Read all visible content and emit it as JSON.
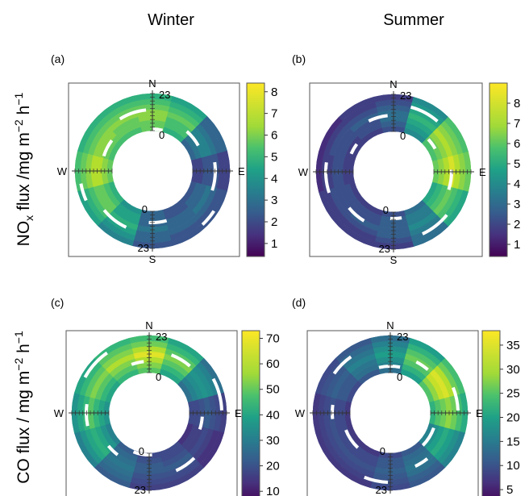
{
  "figure": {
    "column_titles": [
      "Winter",
      "Summer"
    ],
    "row_labels": [
      "NOx flux /mg m-2 h-1",
      "CO flux / mg m-2 h-1"
    ],
    "compass": [
      "N",
      "E",
      "S",
      "W"
    ],
    "hour_labels": [
      "0",
      "23"
    ]
  },
  "chart_data": [
    {
      "type": "polar-annulus",
      "panel": "(a)",
      "season": "Winter",
      "variable": "NOx flux",
      "colorbar": {
        "min": 0.4,
        "max": 8.4,
        "ticks": [
          1,
          2,
          3,
          4,
          5,
          6,
          7,
          8
        ]
      },
      "wind_direction_bins_deg": [
        0,
        30,
        60,
        90,
        120,
        150,
        180,
        210,
        240,
        270,
        300,
        330
      ],
      "hour_bins": [
        0,
        4,
        8,
        12,
        16,
        20,
        23
      ],
      "values": [
        [
          6.5,
          5.5,
          3.0,
          2.0,
          2.5,
          2.5,
          3.0,
          4.5,
          5.5,
          6.5,
          6.0,
          6.0
        ],
        [
          6.5,
          6.0,
          3.5,
          2.0,
          3.0,
          2.5,
          3.0,
          5.0,
          6.0,
          7.0,
          6.5,
          6.5
        ],
        [
          7.0,
          6.0,
          4.0,
          2.5,
          3.0,
          3.0,
          3.0,
          5.0,
          6.5,
          7.5,
          7.0,
          6.5
        ],
        [
          7.0,
          6.5,
          4.0,
          2.5,
          3.5,
          3.0,
          3.5,
          5.5,
          6.5,
          7.5,
          7.0,
          7.0
        ],
        [
          6.5,
          6.0,
          3.5,
          2.5,
          3.0,
          3.0,
          3.0,
          5.0,
          6.0,
          7.0,
          6.5,
          6.5
        ],
        [
          6.0,
          5.5,
          3.0,
          2.0,
          2.5,
          2.5,
          3.0,
          4.5,
          5.5,
          6.5,
          6.0,
          6.0
        ],
        [
          5.5,
          5.0,
          3.0,
          2.0,
          2.5,
          2.5,
          2.5,
          4.0,
          5.0,
          6.0,
          5.5,
          5.5
        ]
      ]
    },
    {
      "type": "polar-annulus",
      "panel": "(b)",
      "season": "Summer",
      "variable": "NOx flux",
      "colorbar": {
        "min": 0.4,
        "max": 9.0,
        "ticks": [
          1,
          2,
          3,
          4,
          5,
          6,
          7,
          8
        ]
      },
      "wind_direction_bins_deg": [
        0,
        30,
        60,
        90,
        120,
        150,
        180,
        210,
        240,
        270,
        300,
        330
      ],
      "hour_bins": [
        0,
        4,
        8,
        12,
        16,
        20,
        23
      ],
      "values": [
        [
          2.5,
          4.5,
          6.5,
          7.0,
          5.5,
          3.5,
          2.5,
          2.0,
          2.0,
          2.0,
          2.0,
          2.0
        ],
        [
          3.0,
          5.0,
          7.0,
          7.5,
          6.0,
          4.0,
          3.0,
          2.5,
          2.5,
          2.0,
          2.0,
          2.5
        ],
        [
          3.5,
          5.5,
          7.5,
          8.0,
          6.5,
          4.0,
          3.0,
          2.5,
          2.5,
          2.5,
          2.5,
          2.5
        ],
        [
          3.5,
          6.0,
          8.0,
          8.5,
          7.0,
          4.5,
          3.0,
          3.0,
          2.5,
          2.5,
          2.5,
          3.0
        ],
        [
          3.0,
          5.5,
          7.5,
          8.0,
          6.5,
          4.0,
          3.0,
          2.5,
          2.5,
          2.0,
          2.5,
          2.5
        ],
        [
          2.5,
          5.0,
          7.0,
          7.5,
          6.0,
          3.5,
          2.5,
          2.0,
          2.0,
          2.0,
          2.0,
          2.0
        ],
        [
          2.0,
          4.5,
          6.5,
          7.0,
          5.5,
          3.5,
          2.0,
          2.0,
          2.0,
          1.5,
          1.5,
          2.0
        ]
      ]
    },
    {
      "type": "polar-annulus",
      "panel": "(c)",
      "season": "Winter",
      "variable": "CO flux",
      "colorbar": {
        "min": 5,
        "max": 73,
        "ticks": [
          10,
          20,
          30,
          40,
          50,
          60,
          70
        ]
      },
      "wind_direction_bins_deg": [
        0,
        30,
        60,
        90,
        120,
        150,
        180,
        210,
        240,
        270,
        300,
        330
      ],
      "hour_bins": [
        0,
        4,
        8,
        12,
        16,
        20,
        23
      ],
      "values": [
        [
          55,
          45,
          30,
          20,
          15,
          20,
          20,
          25,
          35,
          40,
          45,
          50
        ],
        [
          60,
          50,
          35,
          20,
          18,
          20,
          22,
          28,
          40,
          45,
          50,
          55
        ],
        [
          65,
          55,
          38,
          22,
          18,
          22,
          25,
          30,
          45,
          50,
          55,
          60
        ],
        [
          70,
          60,
          40,
          25,
          20,
          25,
          25,
          32,
          48,
          55,
          60,
          65
        ],
        [
          65,
          55,
          38,
          22,
          18,
          22,
          22,
          30,
          45,
          50,
          55,
          60
        ],
        [
          58,
          50,
          35,
          20,
          15,
          20,
          20,
          28,
          40,
          45,
          50,
          55
        ],
        [
          52,
          45,
          30,
          18,
          15,
          18,
          18,
          25,
          35,
          40,
          45,
          50
        ]
      ]
    },
    {
      "type": "polar-annulus",
      "panel": "(d)",
      "season": "Summer",
      "variable": "CO flux",
      "colorbar": {
        "min": 2,
        "max": 38,
        "ticks": [
          5,
          10,
          15,
          20,
          25,
          30,
          35
        ]
      },
      "wind_direction_bins_deg": [
        0,
        30,
        60,
        90,
        120,
        150,
        180,
        210,
        240,
        270,
        300,
        330
      ],
      "hour_bins": [
        0,
        4,
        8,
        12,
        16,
        20,
        23
      ],
      "values": [
        [
          15,
          22,
          28,
          25,
          18,
          12,
          10,
          8,
          8,
          8,
          10,
          12
        ],
        [
          18,
          25,
          32,
          28,
          20,
          14,
          12,
          10,
          10,
          10,
          12,
          15
        ],
        [
          20,
          28,
          35,
          30,
          22,
          15,
          12,
          10,
          10,
          10,
          12,
          16
        ],
        [
          22,
          30,
          36,
          32,
          24,
          16,
          13,
          11,
          11,
          11,
          13,
          18
        ],
        [
          20,
          28,
          34,
          30,
          22,
          15,
          12,
          10,
          10,
          10,
          12,
          16
        ],
        [
          18,
          25,
          30,
          27,
          20,
          13,
          11,
          9,
          9,
          9,
          11,
          14
        ],
        [
          15,
          22,
          27,
          24,
          18,
          12,
          10,
          8,
          8,
          8,
          10,
          12
        ]
      ]
    }
  ]
}
